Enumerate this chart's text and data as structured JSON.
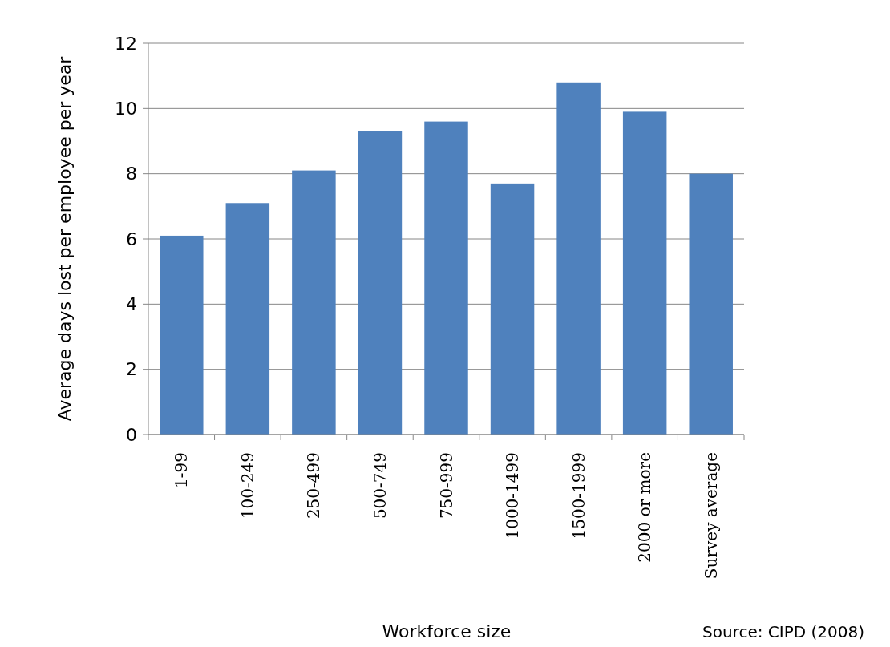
{
  "chart_data": {
    "type": "bar",
    "xlabel": "Workforce size",
    "ylabel": "Average days lost per employee per year",
    "categories": [
      "1-99",
      "100-249",
      "250-499",
      "500-749",
      "750-999",
      "1000-1499",
      "1500-1999",
      "2000 or more",
      "Survey average"
    ],
    "values": [
      6.1,
      7.1,
      8.1,
      9.3,
      9.6,
      7.7,
      10.8,
      9.9,
      8.0
    ],
    "color": "#4f81bd",
    "ylim": [
      0,
      12
    ],
    "yticks": [
      0,
      2,
      4,
      6,
      8,
      10,
      12
    ],
    "grid": "y",
    "annotations": [
      "Source:  CIPD (2008)"
    ]
  }
}
